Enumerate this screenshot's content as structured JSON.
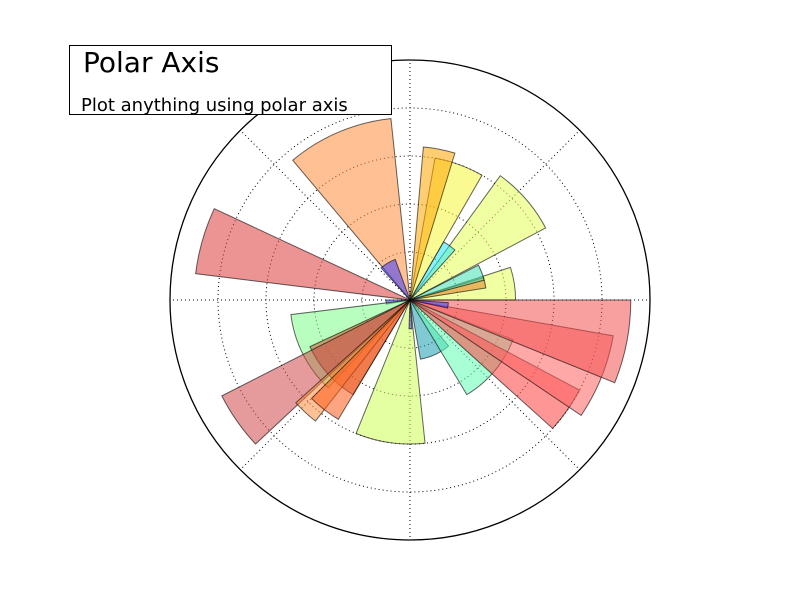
{
  "chart_data": {
    "type": "polar-bar",
    "title": "Polar Axis",
    "subtitle": "Plot anything using polar axis",
    "grid": true,
    "radial_gridlines": [
      1,
      2,
      3,
      4,
      5
    ],
    "rmax": 5,
    "angular_gridlines_deg": [
      0,
      45,
      90,
      135,
      180,
      225,
      270,
      315
    ],
    "bars": [
      {
        "theta_deg": 0,
        "width_deg": 18,
        "radius": 2.2,
        "color": "#e2ff55"
      },
      {
        "theta_deg": 9,
        "width_deg": 8,
        "radius": 1.6,
        "color": "#e67e22"
      },
      {
        "theta_deg": 15,
        "width_deg": 12,
        "radius": 1.6,
        "color": "#40e0b0"
      },
      {
        "theta_deg": 28,
        "width_deg": 26,
        "radius": 3.2,
        "color": "#e2ff55"
      },
      {
        "theta_deg": 48,
        "width_deg": 12,
        "radius": 1.4,
        "color": "#22e5ff"
      },
      {
        "theta_deg": 60,
        "width_deg": 20,
        "radius": 3.0,
        "color": "#f5f53a"
      },
      {
        "theta_deg": 73,
        "width_deg": 12,
        "radius": 3.2,
        "color": "#ffa500"
      },
      {
        "theta_deg": 96,
        "width_deg": 34,
        "radius": 3.8,
        "color": "#ff8c3a"
      },
      {
        "theta_deg": 110,
        "width_deg": 22,
        "radius": 0.9,
        "color": "#3b3bff"
      },
      {
        "theta_deg": 155,
        "width_deg": 18,
        "radius": 4.5,
        "color": "#dd3b3b"
      },
      {
        "theta_deg": 180,
        "width_deg": 10,
        "radius": 0.5,
        "color": "#3b3bff"
      },
      {
        "theta_deg": 187,
        "width_deg": 40,
        "radius": 2.5,
        "color": "#7dff8a"
      },
      {
        "theta_deg": 205,
        "width_deg": 34,
        "radius": 2.3,
        "color": "#c85a30"
      },
      {
        "theta_deg": 207,
        "width_deg": 16,
        "radius": 4.4,
        "color": "#d04848"
      },
      {
        "theta_deg": 222,
        "width_deg": 10,
        "radius": 3.2,
        "color": "#ff8c40"
      },
      {
        "theta_deg": 225,
        "width_deg": 14,
        "radius": 2.9,
        "color": "#ff5a1a"
      },
      {
        "theta_deg": 248,
        "width_deg": 28,
        "radius": 3.0,
        "color": "#ccff55"
      },
      {
        "theta_deg": 268,
        "width_deg": 6,
        "radius": 0.6,
        "color": "#3b3bff"
      },
      {
        "theta_deg": 280,
        "width_deg": 30,
        "radius": 1.25,
        "color": "#1a9fb0"
      },
      {
        "theta_deg": 301,
        "width_deg": 38,
        "radius": 2.3,
        "color": "#60ffb4"
      },
      {
        "theta_deg": 318,
        "width_deg": 14,
        "radius": 4.0,
        "color": "#ff4040"
      },
      {
        "theta_deg": 326,
        "width_deg": 24,
        "radius": 4.3,
        "color": "#ff6060"
      },
      {
        "theta_deg": 338,
        "width_deg": 22,
        "radius": 4.6,
        "color": "#f35050"
      },
      {
        "theta_deg": 348,
        "width_deg": 8,
        "radius": 0.8,
        "color": "#3b3bff"
      }
    ]
  }
}
